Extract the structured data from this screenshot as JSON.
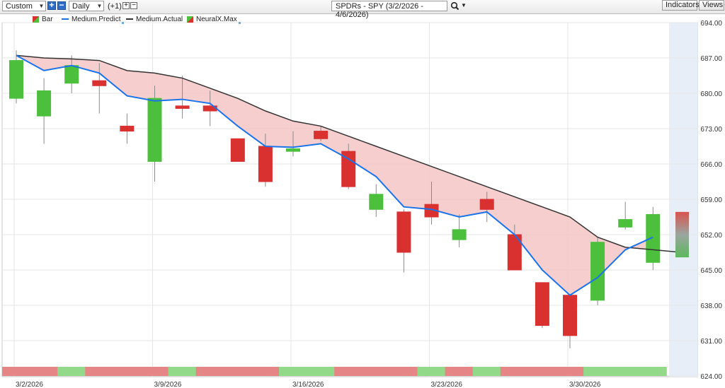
{
  "toolbar": {
    "range_select": "Custom",
    "period_select": "Daily",
    "offset_label": "(+1)",
    "symbol_title": "SPDRs - SPY (3/2/2026 - 4/6/2026)",
    "indicators_label": "Indicators",
    "views_label": "Views"
  },
  "legend": {
    "bar": "Bar",
    "predict": "Medium.Predict",
    "actual": "Medium.Actual",
    "neural": "NeuralX.Max"
  },
  "colors": {
    "up": "#4cbf3c",
    "down": "#d93030",
    "predict_line": "#1a73e8",
    "actual_line": "#333333",
    "fill": "#f5c6c6",
    "band_up": "#92d98a",
    "band_down": "#e58585"
  },
  "chart_data": {
    "type": "candlestick",
    "ylim": [
      624,
      694
    ],
    "y_ticks": [
      "694.00",
      "687.00",
      "680.00",
      "673.00",
      "666.00",
      "659.00",
      "652.00",
      "645.00",
      "638.00",
      "631.00",
      "624.00"
    ],
    "x_labels": [
      "3/2/2026",
      "3/9/2026",
      "3/16/2026",
      "3/23/2026",
      "3/30/2026"
    ],
    "label_days": [
      0,
      5,
      10,
      15,
      20
    ],
    "candles": [
      {
        "o": 679.0,
        "h": 688.5,
        "l": 678.0,
        "c": 686.5
      },
      {
        "o": 675.5,
        "h": 683.0,
        "l": 670.0,
        "c": 680.5
      },
      {
        "o": 682.0,
        "h": 687.5,
        "l": 680.0,
        "c": 685.5
      },
      {
        "o": 682.5,
        "h": 686.0,
        "l": 676.0,
        "c": 681.5
      },
      {
        "o": 673.5,
        "h": 676.0,
        "l": 670.0,
        "c": 672.5
      },
      {
        "o": 666.5,
        "h": 681.5,
        "l": 662.5,
        "c": 679.0
      },
      {
        "o": 677.5,
        "h": 683.5,
        "l": 675.0,
        "c": 677.0
      },
      {
        "o": 677.5,
        "h": 680.5,
        "l": 673.5,
        "c": 676.5
      },
      {
        "o": 671.0,
        "h": 671.0,
        "l": 666.5,
        "c": 666.5
      },
      {
        "o": 669.5,
        "h": 672.0,
        "l": 661.5,
        "c": 662.5
      },
      {
        "o": 668.5,
        "h": 672.5,
        "l": 667.5,
        "c": 669.0
      },
      {
        "o": 672.5,
        "h": 673.5,
        "l": 670.5,
        "c": 671.0
      },
      {
        "o": 668.5,
        "h": 670.0,
        "l": 661.0,
        "c": 661.5
      },
      {
        "o": 657.0,
        "h": 662.0,
        "l": 655.5,
        "c": 660.0
      },
      {
        "o": 656.5,
        "h": 657.0,
        "l": 644.5,
        "c": 648.5
      },
      {
        "o": 658.0,
        "h": 662.5,
        "l": 654.0,
        "c": 655.5
      },
      {
        "o": 651.0,
        "h": 656.0,
        "l": 649.5,
        "c": 653.0
      },
      {
        "o": 659.0,
        "h": 660.5,
        "l": 654.5,
        "c": 657.0
      },
      {
        "o": 652.0,
        "h": 654.0,
        "l": 645.0,
        "c": 645.0
      },
      {
        "o": 642.5,
        "h": 642.5,
        "l": 633.5,
        "c": 634.0
      },
      {
        "o": 640.0,
        "h": 640.0,
        "l": 629.5,
        "c": 632.0
      },
      {
        "o": 639.0,
        "h": 651.5,
        "l": 638.0,
        "c": 650.5
      },
      {
        "o": 653.5,
        "h": 658.5,
        "l": 653.0,
        "c": 655.0
      },
      {
        "o": 646.5,
        "h": 657.5,
        "l": 645.0,
        "c": 656.0
      }
    ],
    "series": [
      {
        "name": "Medium.Predict",
        "values": [
          687.5,
          684.5,
          685.5,
          684.0,
          679.5,
          678.5,
          678.8,
          678.0,
          673.5,
          669.5,
          669.3,
          670.0,
          667.0,
          663.5,
          657.5,
          657.0,
          655.5,
          656.5,
          652.0,
          645.0,
          640.0,
          643.5,
          649.0,
          651.5
        ]
      },
      {
        "name": "Medium.Actual",
        "values": [
          687.5,
          687.0,
          686.8,
          686.5,
          684.5,
          684.0,
          683.0,
          681.0,
          679.0,
          676.5,
          674.5,
          673.5,
          671.5,
          669.5,
          667.5,
          665.5,
          663.5,
          661.5,
          659.5,
          657.5,
          655.5,
          651.5,
          649.5,
          649.0,
          648.5
        ]
      }
    ],
    "forecast_bar": {
      "o": 656.5,
      "c": 647.5
    },
    "regime_bands": [
      "down",
      "down",
      "up",
      "down",
      "down",
      "down",
      "up",
      "down",
      "down",
      "down",
      "up",
      "up",
      "down",
      "down",
      "down",
      "up",
      "down",
      "up",
      "down",
      "down",
      "down",
      "up",
      "up",
      "up"
    ]
  }
}
